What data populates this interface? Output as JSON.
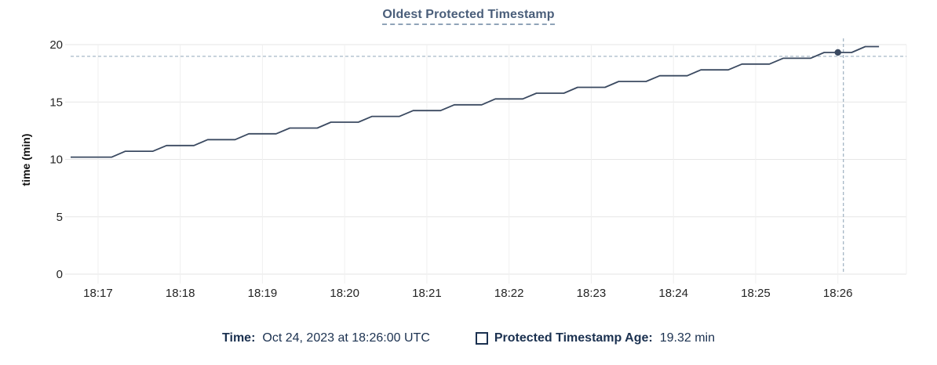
{
  "chart": {
    "title": "Oldest Protected Timestamp"
  },
  "chart_data": {
    "type": "line",
    "title": "Oldest Protected Timestamp",
    "xlabel": "",
    "ylabel": "time (min)",
    "ylim": [
      0,
      20
    ],
    "y_ticks": [
      0,
      5,
      10,
      15,
      20
    ],
    "x_ticks": [
      "18:17",
      "18:18",
      "18:19",
      "18:20",
      "18:21",
      "18:22",
      "18:23",
      "18:24",
      "18:25",
      "18:26"
    ],
    "x_domain": [
      "18:16:40",
      "18:26:50"
    ],
    "grid": true,
    "legend_position": "bottom",
    "series": [
      {
        "name": "Protected Timestamp Age",
        "unit": "min",
        "points": [
          [
            "18:16:40",
            10.2
          ],
          [
            "18:16:50",
            10.2
          ],
          [
            "18:17:00",
            10.2
          ],
          [
            "18:17:10",
            10.2
          ],
          [
            "18:17:20",
            10.71
          ],
          [
            "18:17:30",
            10.71
          ],
          [
            "18:17:40",
            10.71
          ],
          [
            "18:17:50",
            11.21
          ],
          [
            "18:18:00",
            11.21
          ],
          [
            "18:18:10",
            11.21
          ],
          [
            "18:18:20",
            11.72
          ],
          [
            "18:18:30",
            11.72
          ],
          [
            "18:18:40",
            11.72
          ],
          [
            "18:18:50",
            12.23
          ],
          [
            "18:19:00",
            12.23
          ],
          [
            "18:19:10",
            12.23
          ],
          [
            "18:19:20",
            12.73
          ],
          [
            "18:19:30",
            12.73
          ],
          [
            "18:19:40",
            12.73
          ],
          [
            "18:19:50",
            13.24
          ],
          [
            "18:20:00",
            13.24
          ],
          [
            "18:20:10",
            13.24
          ],
          [
            "18:20:20",
            13.75
          ],
          [
            "18:20:30",
            13.75
          ],
          [
            "18:20:40",
            13.75
          ],
          [
            "18:20:50",
            14.25
          ],
          [
            "18:21:00",
            14.25
          ],
          [
            "18:21:10",
            14.25
          ],
          [
            "18:21:20",
            14.76
          ],
          [
            "18:21:30",
            14.76
          ],
          [
            "18:21:40",
            14.76
          ],
          [
            "18:21:50",
            15.27
          ],
          [
            "18:22:00",
            15.27
          ],
          [
            "18:22:10",
            15.27
          ],
          [
            "18:22:20",
            15.77
          ],
          [
            "18:22:30",
            15.77
          ],
          [
            "18:22:40",
            15.77
          ],
          [
            "18:22:50",
            16.28
          ],
          [
            "18:23:00",
            16.28
          ],
          [
            "18:23:10",
            16.28
          ],
          [
            "18:23:20",
            16.79
          ],
          [
            "18:23:30",
            16.79
          ],
          [
            "18:23:40",
            16.79
          ],
          [
            "18:23:50",
            17.29
          ],
          [
            "18:24:00",
            17.29
          ],
          [
            "18:24:10",
            17.29
          ],
          [
            "18:24:20",
            17.8
          ],
          [
            "18:24:30",
            17.8
          ],
          [
            "18:24:40",
            17.8
          ],
          [
            "18:24:50",
            18.31
          ],
          [
            "18:25:00",
            18.31
          ],
          [
            "18:25:10",
            18.31
          ],
          [
            "18:25:20",
            18.81
          ],
          [
            "18:25:30",
            18.81
          ],
          [
            "18:25:40",
            18.81
          ],
          [
            "18:25:50",
            19.32
          ],
          [
            "18:26:00",
            19.32
          ],
          [
            "18:26:10",
            19.32
          ],
          [
            "18:26:20",
            19.83
          ],
          [
            "18:26:30",
            19.83
          ]
        ]
      }
    ],
    "hover_point": {
      "time": "18:26:00",
      "value": 19.32
    }
  },
  "legend": {
    "time_label": "Time:",
    "time_value": "Oct 24, 2023 at 18:26:00 UTC",
    "series_label": "Protected Timestamp Age:",
    "series_value": "19.32 min"
  },
  "colors": {
    "series_line": "#3b4a61",
    "title": "#4a5e7a",
    "legend_text": "#1b3150",
    "crosshair": "#9db0c0",
    "grid_h": "#e6e6e6",
    "grid_v": "#f0f0f0",
    "axis_text": "#242424",
    "underline": "#8fa3b8"
  }
}
